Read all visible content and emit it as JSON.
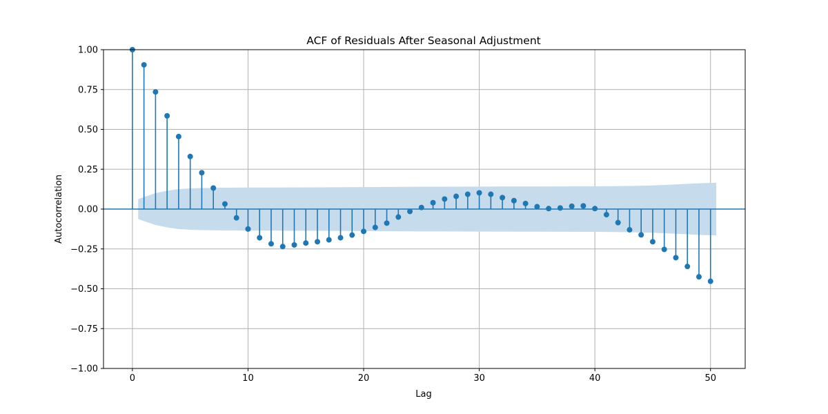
{
  "chart_data": {
    "type": "stem",
    "title": "ACF of Residuals After Seasonal Adjustment",
    "xlabel": "Lag",
    "ylabel": "Autocorrelation",
    "xlim": [
      -2.5,
      53
    ],
    "ylim": [
      -1.0,
      1.0
    ],
    "grid": true,
    "xticks": [
      0,
      10,
      20,
      30,
      40,
      50
    ],
    "xtick_labels": [
      "0",
      "10",
      "20",
      "30",
      "40",
      "50"
    ],
    "yticks": [
      -1.0,
      -0.75,
      -0.5,
      -0.25,
      0.0,
      0.25,
      0.5,
      0.75,
      1.0
    ],
    "ytick_labels": [
      "−1.00",
      "−0.75",
      "−0.50",
      "−0.25",
      "0.00",
      "0.25",
      "0.50",
      "0.75",
      "1.00"
    ],
    "lags": [
      0,
      1,
      2,
      3,
      4,
      5,
      6,
      7,
      8,
      9,
      10,
      11,
      12,
      13,
      14,
      15,
      16,
      17,
      18,
      19,
      20,
      21,
      22,
      23,
      24,
      25,
      26,
      27,
      28,
      29,
      30,
      31,
      32,
      33,
      34,
      35,
      36,
      37,
      38,
      39,
      40,
      41,
      42,
      43,
      44,
      45,
      46,
      47,
      48,
      49,
      50
    ],
    "acf": [
      1.0,
      0.905,
      0.735,
      0.585,
      0.455,
      0.33,
      0.228,
      0.132,
      0.032,
      -0.055,
      -0.125,
      -0.18,
      -0.218,
      -0.235,
      -0.225,
      -0.213,
      -0.205,
      -0.193,
      -0.18,
      -0.163,
      -0.14,
      -0.115,
      -0.088,
      -0.05,
      -0.015,
      0.01,
      0.04,
      0.063,
      0.08,
      0.093,
      0.102,
      0.093,
      0.072,
      0.053,
      0.035,
      0.015,
      0.003,
      0.007,
      0.018,
      0.02,
      0.003,
      -0.035,
      -0.085,
      -0.13,
      -0.162,
      -0.205,
      -0.253,
      -0.305,
      -0.36,
      -0.425,
      -0.453
    ],
    "confidence_band": {
      "lags": [
        0.5,
        1,
        2,
        3,
        4,
        5,
        6,
        8,
        10,
        15,
        20,
        25,
        30,
        35,
        40,
        43,
        45,
        47,
        49,
        50.5
      ],
      "upper": [
        0.062,
        0.075,
        0.1,
        0.115,
        0.125,
        0.13,
        0.132,
        0.134,
        0.135,
        0.136,
        0.138,
        0.14,
        0.141,
        0.142,
        0.143,
        0.145,
        0.148,
        0.155,
        0.162,
        0.165
      ]
    },
    "colors": {
      "stem": "#1f77b4",
      "band": "#c6dbec",
      "grid": "#b0b0b0",
      "axis": "#000000"
    }
  }
}
